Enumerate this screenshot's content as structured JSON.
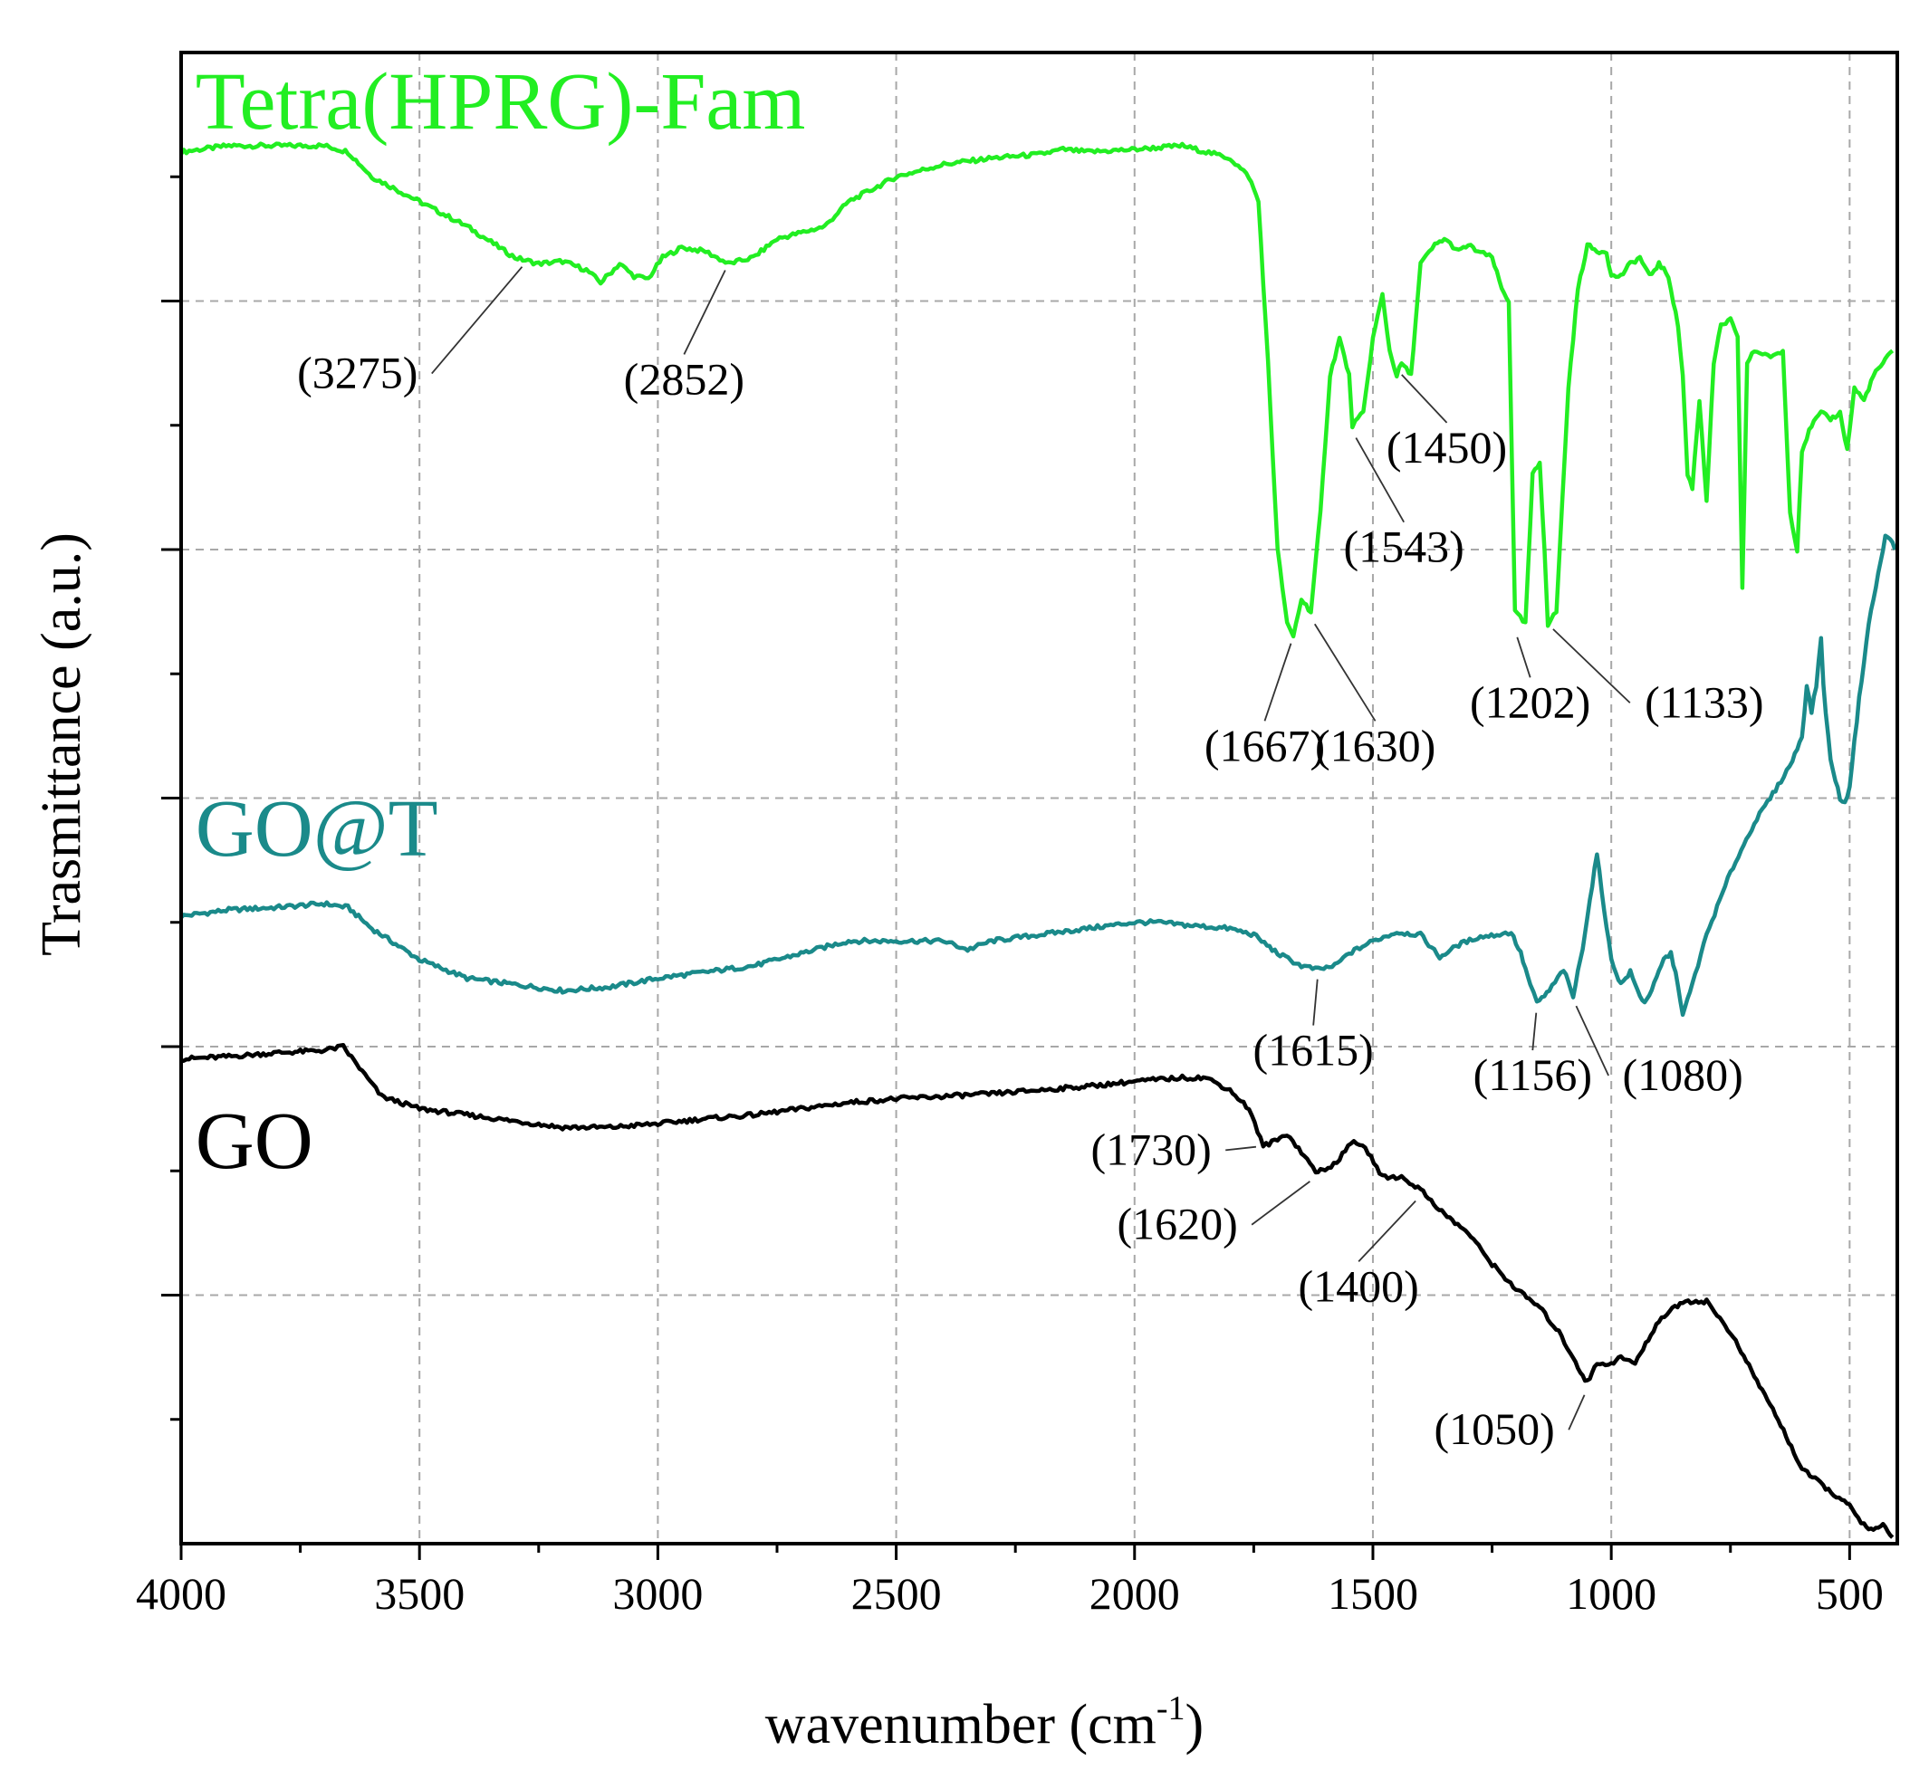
{
  "chart_data": {
    "type": "line",
    "title": "",
    "xlabel": "wavenumber (cm",
    "xlabel_sup": "-1",
    "xlabel_close": ")",
    "ylabel": "Trasmittance (a.u.)",
    "xlim": [
      4000,
      400
    ],
    "ylim": [
      0,
      12
    ],
    "xticks": [
      "4000",
      "3500",
      "3000",
      "2500",
      "2000",
      "1500",
      "1000",
      "500"
    ],
    "xtick_values": [
      4000,
      3500,
      3000,
      2500,
      2000,
      1500,
      1000,
      500
    ],
    "grid": true,
    "series": [
      {
        "name": "Tetra(HPRG)-Fam",
        "color": "#22ee22",
        "points": [
          [
            4000,
            11.2
          ],
          [
            3900,
            11.25
          ],
          [
            3800,
            11.25
          ],
          [
            3700,
            11.25
          ],
          [
            3650,
            11.2
          ],
          [
            3600,
            11.0
          ],
          [
            3500,
            10.8
          ],
          [
            3400,
            10.6
          ],
          [
            3300,
            10.35
          ],
          [
            3250,
            10.3
          ],
          [
            3200,
            10.32
          ],
          [
            3150,
            10.25
          ],
          [
            3120,
            10.15
          ],
          [
            3080,
            10.3
          ],
          [
            3050,
            10.2
          ],
          [
            3020,
            10.18
          ],
          [
            2990,
            10.35
          ],
          [
            2950,
            10.43
          ],
          [
            2900,
            10.4
          ],
          [
            2852,
            10.3
          ],
          [
            2800,
            10.35
          ],
          [
            2750,
            10.5
          ],
          [
            2700,
            10.55
          ],
          [
            2650,
            10.6
          ],
          [
            2600,
            10.8
          ],
          [
            2500,
            11.0
          ],
          [
            2400,
            11.1
          ],
          [
            2300,
            11.15
          ],
          [
            2200,
            11.18
          ],
          [
            2150,
            11.22
          ],
          [
            2100,
            11.2
          ],
          [
            2000,
            11.22
          ],
          [
            1900,
            11.25
          ],
          [
            1800,
            11.15
          ],
          [
            1760,
            11.0
          ],
          [
            1740,
            10.8
          ],
          [
            1720,
            9.5
          ],
          [
            1700,
            8.0
          ],
          [
            1680,
            7.4
          ],
          [
            1667,
            7.3
          ],
          [
            1650,
            7.6
          ],
          [
            1630,
            7.5
          ],
          [
            1610,
            8.3
          ],
          [
            1590,
            9.4
          ],
          [
            1570,
            9.7
          ],
          [
            1550,
            9.4
          ],
          [
            1543,
            9.0
          ],
          [
            1520,
            9.1
          ],
          [
            1500,
            9.7
          ],
          [
            1480,
            10.05
          ],
          [
            1465,
            9.6
          ],
          [
            1450,
            9.4
          ],
          [
            1440,
            9.5
          ],
          [
            1420,
            9.4
          ],
          [
            1400,
            10.3
          ],
          [
            1370,
            10.45
          ],
          [
            1350,
            10.5
          ],
          [
            1320,
            10.4
          ],
          [
            1300,
            10.45
          ],
          [
            1280,
            10.4
          ],
          [
            1250,
            10.35
          ],
          [
            1230,
            10.1
          ],
          [
            1215,
            10.0
          ],
          [
            1202,
            7.5
          ],
          [
            1180,
            7.4
          ],
          [
            1165,
            8.6
          ],
          [
            1150,
            8.7
          ],
          [
            1140,
            8.0
          ],
          [
            1133,
            7.4
          ],
          [
            1115,
            7.5
          ],
          [
            1090,
            9.3
          ],
          [
            1070,
            10.1
          ],
          [
            1050,
            10.45
          ],
          [
            1030,
            10.4
          ],
          [
            1010,
            10.4
          ],
          [
            1000,
            10.2
          ],
          [
            980,
            10.2
          ],
          [
            960,
            10.3
          ],
          [
            940,
            10.35
          ],
          [
            920,
            10.2
          ],
          [
            900,
            10.3
          ],
          [
            880,
            10.2
          ],
          [
            860,
            9.8
          ],
          [
            850,
            9.4
          ],
          [
            840,
            8.6
          ],
          [
            830,
            8.5
          ],
          [
            815,
            9.2
          ],
          [
            800,
            8.4
          ],
          [
            785,
            9.5
          ],
          [
            770,
            9.8
          ],
          [
            750,
            9.85
          ],
          [
            735,
            9.7
          ],
          [
            725,
            7.7
          ],
          [
            715,
            9.5
          ],
          [
            700,
            9.6
          ],
          [
            660,
            9.55
          ],
          [
            640,
            9.6
          ],
          [
            625,
            8.3
          ],
          [
            610,
            8.0
          ],
          [
            600,
            8.8
          ],
          [
            580,
            9.0
          ],
          [
            560,
            9.1
          ],
          [
            540,
            9.05
          ],
          [
            520,
            9.1
          ],
          [
            505,
            8.8
          ],
          [
            490,
            9.3
          ],
          [
            470,
            9.2
          ],
          [
            450,
            9.4
          ],
          [
            430,
            9.5
          ],
          [
            410,
            9.6
          ]
        ]
      },
      {
        "name": "GO@T",
        "color": "#1a8a8a",
        "points": [
          [
            4000,
            5.05
          ],
          [
            3900,
            5.1
          ],
          [
            3800,
            5.12
          ],
          [
            3700,
            5.15
          ],
          [
            3650,
            5.12
          ],
          [
            3600,
            4.95
          ],
          [
            3500,
            4.7
          ],
          [
            3400,
            4.55
          ],
          [
            3300,
            4.5
          ],
          [
            3200,
            4.45
          ],
          [
            3100,
            4.48
          ],
          [
            3000,
            4.55
          ],
          [
            2900,
            4.6
          ],
          [
            2800,
            4.65
          ],
          [
            2700,
            4.75
          ],
          [
            2600,
            4.85
          ],
          [
            2500,
            4.85
          ],
          [
            2400,
            4.85
          ],
          [
            2350,
            4.78
          ],
          [
            2300,
            4.85
          ],
          [
            2200,
            4.9
          ],
          [
            2100,
            4.95
          ],
          [
            2000,
            5.0
          ],
          [
            1950,
            5.0
          ],
          [
            1900,
            4.98
          ],
          [
            1800,
            4.95
          ],
          [
            1750,
            4.9
          ],
          [
            1700,
            4.75
          ],
          [
            1650,
            4.65
          ],
          [
            1615,
            4.62
          ],
          [
            1580,
            4.65
          ],
          [
            1550,
            4.75
          ],
          [
            1500,
            4.85
          ],
          [
            1450,
            4.92
          ],
          [
            1400,
            4.9
          ],
          [
            1360,
            4.72
          ],
          [
            1320,
            4.82
          ],
          [
            1280,
            4.88
          ],
          [
            1240,
            4.9
          ],
          [
            1210,
            4.92
          ],
          [
            1190,
            4.75
          ],
          [
            1170,
            4.5
          ],
          [
            1156,
            4.35
          ],
          [
            1130,
            4.45
          ],
          [
            1100,
            4.62
          ],
          [
            1080,
            4.4
          ],
          [
            1060,
            4.8
          ],
          [
            1040,
            5.3
          ],
          [
            1030,
            5.55
          ],
          [
            1020,
            5.25
          ],
          [
            1000,
            4.7
          ],
          [
            980,
            4.5
          ],
          [
            960,
            4.6
          ],
          [
            945,
            4.45
          ],
          [
            930,
            4.35
          ],
          [
            910,
            4.5
          ],
          [
            890,
            4.7
          ],
          [
            875,
            4.75
          ],
          [
            860,
            4.5
          ],
          [
            850,
            4.25
          ],
          [
            830,
            4.5
          ],
          [
            800,
            4.9
          ],
          [
            750,
            5.4
          ],
          [
            700,
            5.8
          ],
          [
            650,
            6.1
          ],
          [
            620,
            6.3
          ],
          [
            600,
            6.5
          ],
          [
            590,
            6.9
          ],
          [
            580,
            6.7
          ],
          [
            570,
            6.9
          ],
          [
            560,
            7.3
          ],
          [
            555,
            6.9
          ],
          [
            540,
            6.3
          ],
          [
            520,
            6.0
          ],
          [
            510,
            5.95
          ],
          [
            500,
            6.1
          ],
          [
            480,
            6.8
          ],
          [
            460,
            7.4
          ],
          [
            440,
            7.8
          ],
          [
            425,
            8.1
          ],
          [
            415,
            8.1
          ],
          [
            405,
            8.0
          ]
        ]
      },
      {
        "name": "GO",
        "color": "#000000",
        "points": [
          [
            4000,
            3.9
          ],
          [
            3900,
            3.92
          ],
          [
            3800,
            3.95
          ],
          [
            3700,
            3.97
          ],
          [
            3660,
            4.0
          ],
          [
            3620,
            3.8
          ],
          [
            3580,
            3.6
          ],
          [
            3500,
            3.5
          ],
          [
            3400,
            3.45
          ],
          [
            3300,
            3.4
          ],
          [
            3200,
            3.35
          ],
          [
            3100,
            3.35
          ],
          [
            3000,
            3.38
          ],
          [
            2900,
            3.42
          ],
          [
            2800,
            3.45
          ],
          [
            2700,
            3.5
          ],
          [
            2600,
            3.55
          ],
          [
            2500,
            3.58
          ],
          [
            2400,
            3.6
          ],
          [
            2300,
            3.62
          ],
          [
            2200,
            3.65
          ],
          [
            2100,
            3.68
          ],
          [
            2000,
            3.72
          ],
          [
            1900,
            3.75
          ],
          [
            1850,
            3.75
          ],
          [
            1800,
            3.65
          ],
          [
            1760,
            3.5
          ],
          [
            1730,
            3.2
          ],
          [
            1700,
            3.25
          ],
          [
            1680,
            3.3
          ],
          [
            1650,
            3.15
          ],
          [
            1620,
            3.0
          ],
          [
            1600,
            3.0
          ],
          [
            1570,
            3.1
          ],
          [
            1540,
            3.25
          ],
          [
            1510,
            3.15
          ],
          [
            1480,
            2.95
          ],
          [
            1440,
            2.95
          ],
          [
            1400,
            2.85
          ],
          [
            1350,
            2.65
          ],
          [
            1300,
            2.5
          ],
          [
            1250,
            2.25
          ],
          [
            1200,
            2.05
          ],
          [
            1150,
            1.9
          ],
          [
            1110,
            1.7
          ],
          [
            1080,
            1.5
          ],
          [
            1060,
            1.35
          ],
          [
            1050,
            1.3
          ],
          [
            1030,
            1.45
          ],
          [
            1000,
            1.45
          ],
          [
            980,
            1.5
          ],
          [
            950,
            1.45
          ],
          [
            900,
            1.8
          ],
          [
            850,
            1.95
          ],
          [
            800,
            1.95
          ],
          [
            750,
            1.7
          ],
          [
            700,
            1.35
          ],
          [
            650,
            1.0
          ],
          [
            600,
            0.6
          ],
          [
            550,
            0.45
          ],
          [
            500,
            0.3
          ],
          [
            470,
            0.15
          ],
          [
            450,
            0.1
          ],
          [
            430,
            0.15
          ],
          [
            410,
            0.05
          ]
        ]
      }
    ],
    "series_labels": [
      "Tetra(HPRG)-Fam",
      "GO@T",
      "GO"
    ],
    "annotations": [
      {
        "text": "(3275)",
        "series": 0,
        "peak_x": 3275,
        "peak_y": 10.32,
        "text_x": 3630,
        "text_y": 9.3
      },
      {
        "text": "(2852)",
        "series": 0,
        "peak_x": 2852,
        "peak_y": 10.3,
        "text_x": 2945,
        "text_y": 9.25
      },
      {
        "text": "(1450)",
        "series": 0,
        "peak_x": 1450,
        "peak_y": 9.45,
        "text_x": 1345,
        "text_y": 8.7
      },
      {
        "text": "(1543)",
        "series": 0,
        "peak_x": 1543,
        "peak_y": 8.95,
        "text_x": 1435,
        "text_y": 7.9
      },
      {
        "text": "(1667)",
        "series": 0,
        "peak_x": 1667,
        "peak_y": 7.3,
        "text_x": 1727,
        "text_y": 6.3
      },
      {
        "text": "(1630)",
        "series": 0,
        "peak_x": 1630,
        "peak_y": 7.45,
        "text_x": 1495,
        "text_y": 6.3
      },
      {
        "text": "(1202)",
        "series": 0,
        "peak_x": 1202,
        "peak_y": 7.35,
        "text_x": 1170,
        "text_y": 6.65
      },
      {
        "text": "(1133)",
        "series": 0,
        "peak_x": 1133,
        "peak_y": 7.4,
        "text_x": 805,
        "text_y": 6.65
      },
      {
        "text": "(1615)",
        "series": 1,
        "peak_x": 1615,
        "peak_y": 4.6,
        "text_x": 1625,
        "text_y": 3.85
      },
      {
        "text": "(1156)",
        "series": 1,
        "peak_x": 1156,
        "peak_y": 4.33,
        "text_x": 1165,
        "text_y": 3.65
      },
      {
        "text": "(1080)",
        "series": 1,
        "peak_x": 1080,
        "peak_y": 4.38,
        "text_x": 850,
        "text_y": 3.65
      },
      {
        "text": "(1730)",
        "series": 2,
        "peak_x": 1730,
        "peak_y": 3.2,
        "text_x": 1965,
        "text_y": 3.05
      },
      {
        "text": "(1620)",
        "series": 2,
        "peak_x": 1620,
        "peak_y": 2.95,
        "text_x": 1910,
        "text_y": 2.45
      },
      {
        "text": "(1400)",
        "series": 2,
        "peak_x": 1400,
        "peak_y": 2.8,
        "text_x": 1530,
        "text_y": 1.95
      },
      {
        "text": "(1050)",
        "series": 2,
        "peak_x": 1050,
        "peak_y": 1.25,
        "text_x": 1245,
        "text_y": 0.8
      }
    ]
  }
}
